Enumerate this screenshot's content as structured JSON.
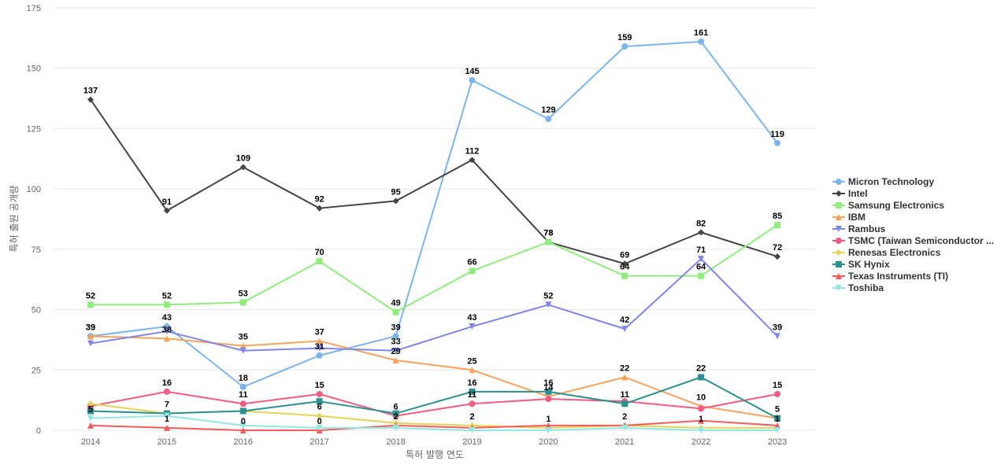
{
  "chart_data": {
    "type": "line",
    "title": "",
    "xlabel": "특허 발행 연도",
    "ylabel": "특허 출원 공개량",
    "ylim": [
      0,
      175
    ],
    "yticks": [
      0,
      25,
      50,
      75,
      100,
      125,
      150,
      175
    ],
    "grid": true,
    "legend_position": "right",
    "categories": [
      "2014",
      "2015",
      "2016",
      "2017",
      "2018",
      "2019",
      "2020",
      "2021",
      "2022",
      "2023"
    ],
    "series": [
      {
        "name": "Micron Technology",
        "color": "#7cb5ec",
        "marker": "circle",
        "values": [
          39,
          43,
          18,
          31,
          39,
          145,
          129,
          159,
          161,
          119
        ],
        "labels": [
          true,
          true,
          true,
          true,
          true,
          true,
          true,
          true,
          true,
          true
        ]
      },
      {
        "name": "Intel",
        "color": "#434348",
        "marker": "diamond",
        "values": [
          137,
          91,
          109,
          92,
          95,
          112,
          78,
          69,
          82,
          72
        ],
        "labels": [
          true,
          true,
          true,
          true,
          true,
          true,
          true,
          true,
          true,
          true
        ]
      },
      {
        "name": "Samsung Electronics",
        "color": "#90ed7d",
        "marker": "square",
        "values": [
          52,
          52,
          53,
          70,
          49,
          66,
          78,
          64,
          64,
          85
        ],
        "labels": [
          true,
          true,
          true,
          true,
          true,
          true,
          true,
          true,
          true,
          true
        ]
      },
      {
        "name": "IBM",
        "color": "#f7a35c",
        "marker": "triangle",
        "values": [
          39,
          38,
          35,
          37,
          29,
          25,
          14,
          22,
          10,
          5
        ],
        "labels": [
          true,
          true,
          true,
          true,
          true,
          true,
          true,
          true,
          true,
          false
        ]
      },
      {
        "name": "Rambus",
        "color": "#8085e9",
        "marker": "triangle-down",
        "values": [
          36,
          41,
          33,
          34,
          33,
          43,
          52,
          42,
          71,
          39
        ],
        "labels": [
          false,
          false,
          false,
          false,
          true,
          true,
          true,
          true,
          true,
          true
        ]
      },
      {
        "name": "TSMC (Taiwan Semiconductor ...",
        "color": "#f15c80",
        "marker": "circle",
        "values": [
          10,
          16,
          11,
          15,
          6,
          11,
          13,
          12,
          9,
          15
        ],
        "labels": [
          false,
          true,
          true,
          true,
          true,
          true,
          false,
          false,
          false,
          true
        ]
      },
      {
        "name": "Renesas Electronics",
        "color": "#e4d354",
        "marker": "diamond",
        "values": [
          11,
          7,
          8,
          6,
          3,
          2,
          1,
          2,
          1,
          1
        ],
        "labels": [
          false,
          false,
          false,
          true,
          false,
          true,
          true,
          true,
          true,
          true
        ]
      },
      {
        "name": "SK Hynix",
        "color": "#2b908f",
        "marker": "square",
        "values": [
          8,
          7,
          8,
          12,
          7,
          16,
          16,
          11,
          22,
          5
        ],
        "labels": [
          false,
          true,
          false,
          false,
          false,
          true,
          true,
          true,
          true,
          true
        ]
      },
      {
        "name": "Texas Instruments (TI)",
        "color": "#f45b5b",
        "marker": "triangle",
        "values": [
          2,
          1,
          0,
          0,
          2,
          1,
          2,
          2,
          4,
          2
        ],
        "labels": [
          false,
          true,
          true,
          true,
          true,
          false,
          false,
          false,
          false,
          false
        ]
      },
      {
        "name": "Toshiba",
        "color": "#91e8e1",
        "marker": "triangle-down",
        "values": [
          5,
          6,
          2,
          1,
          1,
          0,
          0,
          1,
          0,
          0
        ],
        "labels": [
          true,
          false,
          false,
          false,
          false,
          false,
          false,
          false,
          false,
          false
        ]
      }
    ]
  }
}
